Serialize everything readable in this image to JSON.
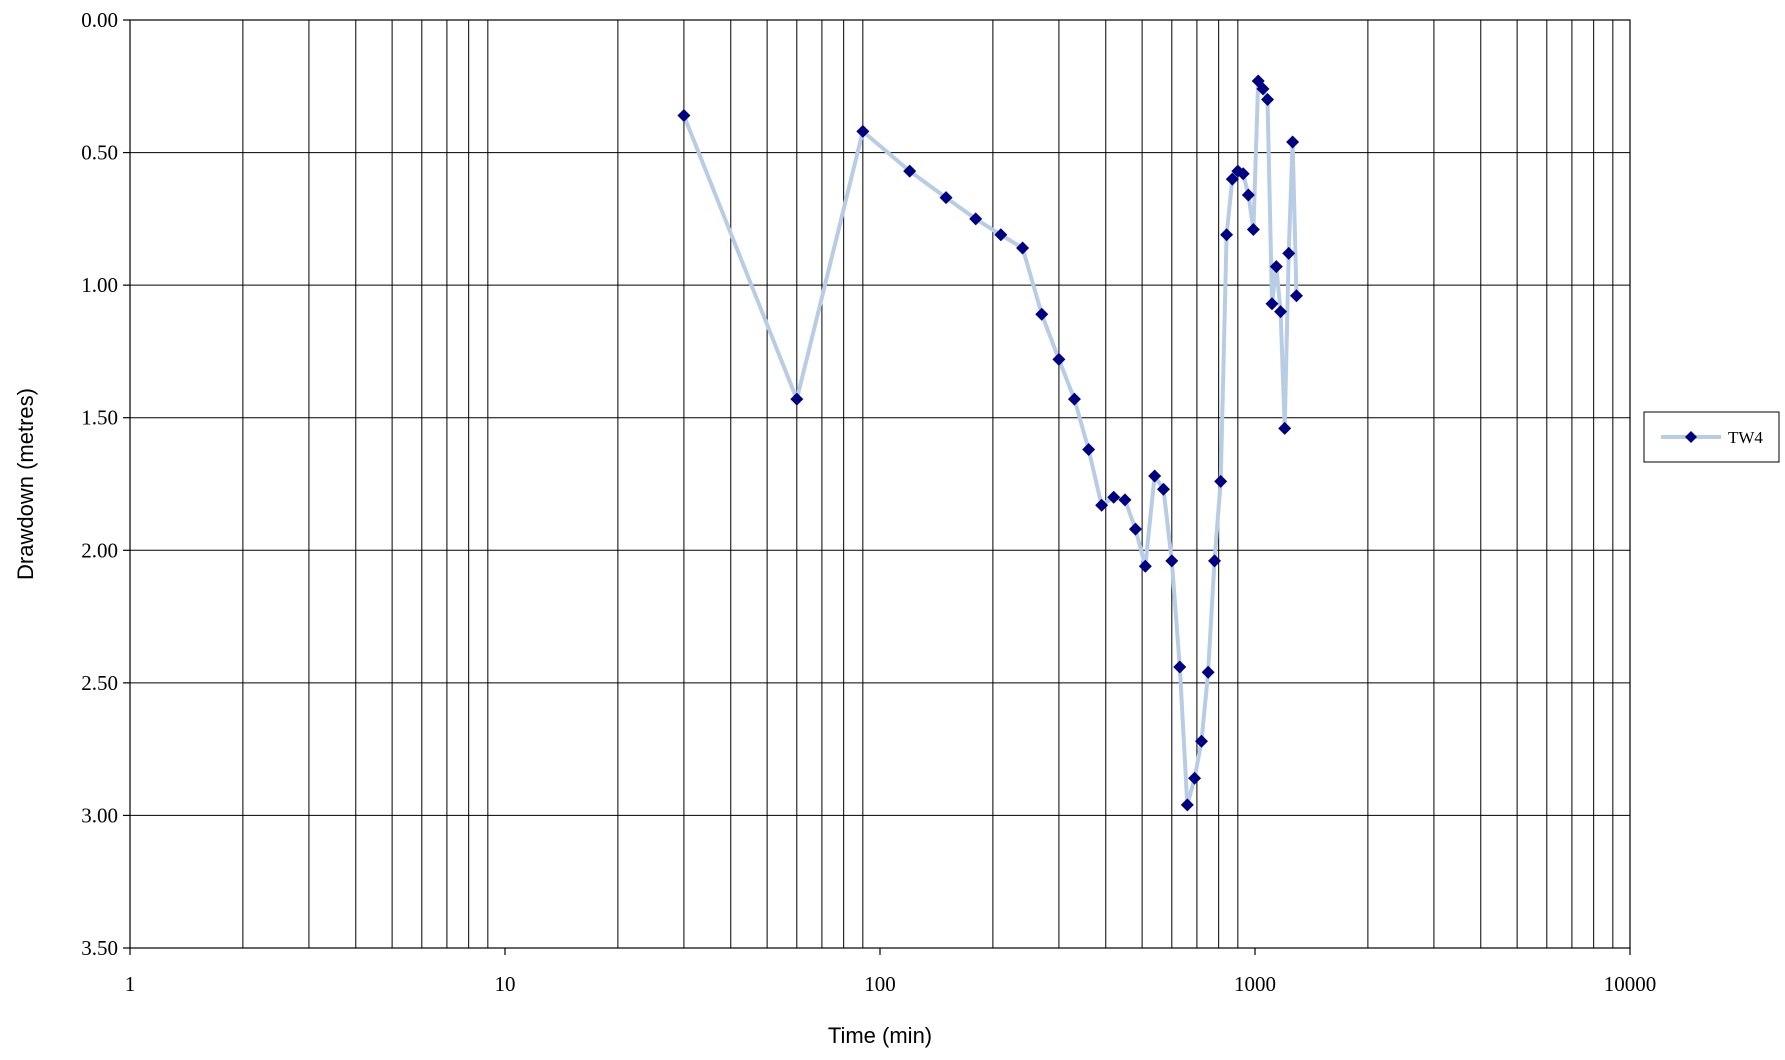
{
  "chart_data": {
    "type": "scatter",
    "title": "",
    "xlabel": "Time (min)",
    "ylabel": "Drawdown (metres)",
    "x_scale": "log",
    "xlim": [
      1,
      10000
    ],
    "ylim": [
      0,
      3.5
    ],
    "y_inverted": true,
    "x_ticks": [
      "1",
      "10",
      "100",
      "1000",
      "10000"
    ],
    "y_ticks": [
      "0.00",
      "0.50",
      "1.00",
      "1.50",
      "2.00",
      "2.50",
      "3.00",
      "3.50"
    ],
    "grid": true,
    "legend_position": "right",
    "series": [
      {
        "name": "TW4",
        "line_color": "#b8cce4",
        "marker_color": "#000080",
        "marker": "diamond",
        "x": [
          30,
          60,
          90,
          120,
          150,
          180,
          210,
          240,
          270,
          300,
          330,
          360,
          390,
          420,
          450,
          480,
          510,
          540,
          570,
          600,
          630,
          660,
          690,
          720,
          750,
          780,
          810,
          840,
          870,
          900,
          930,
          960,
          990,
          1020,
          1050,
          1080,
          1110,
          1140,
          1170,
          1200,
          1230,
          1260,
          1290
        ],
        "y": [
          0.36,
          1.43,
          0.42,
          0.57,
          0.67,
          0.75,
          0.81,
          0.86,
          1.11,
          1.28,
          1.43,
          1.62,
          1.83,
          1.8,
          1.81,
          1.92,
          2.06,
          1.72,
          1.77,
          2.04,
          2.44,
          2.96,
          2.86,
          2.72,
          2.46,
          2.04,
          1.74,
          0.81,
          0.6,
          0.57,
          0.58,
          0.66,
          0.79,
          0.23,
          0.26,
          0.3,
          1.07,
          0.93,
          1.1,
          1.54,
          0.88,
          0.46,
          1.04
        ]
      }
    ]
  }
}
